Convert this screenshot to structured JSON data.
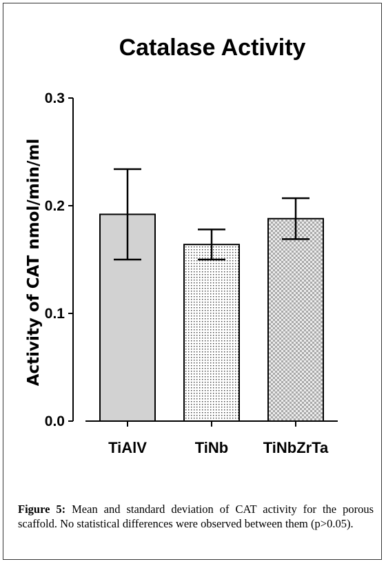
{
  "chart_data": {
    "type": "bar",
    "title": "Catalase Activity",
    "ylabel": "Activity of CAT nmol/min/ml",
    "xlabel": "",
    "categories": [
      "TiAlV",
      "TiNb",
      "TiNbZrTa"
    ],
    "values": [
      0.192,
      0.164,
      0.188
    ],
    "error": [
      0.042,
      0.014,
      0.019
    ],
    "ylim": [
      0,
      0.3
    ],
    "yticks": [
      "0.0",
      "0.1",
      "0.2",
      "0.3"
    ],
    "bar_fills": [
      "solid-gray",
      "dotted",
      "checkered"
    ],
    "grid": false,
    "legend": "none",
    "colors": {
      "bar": "#d2d2d2",
      "outline": "#000000"
    }
  },
  "caption": {
    "label": "Figure 5:",
    "text": "Mean and standard deviation of CAT activity for the porous scaffold. No statistical differences were observed between them (p>0.05)."
  }
}
